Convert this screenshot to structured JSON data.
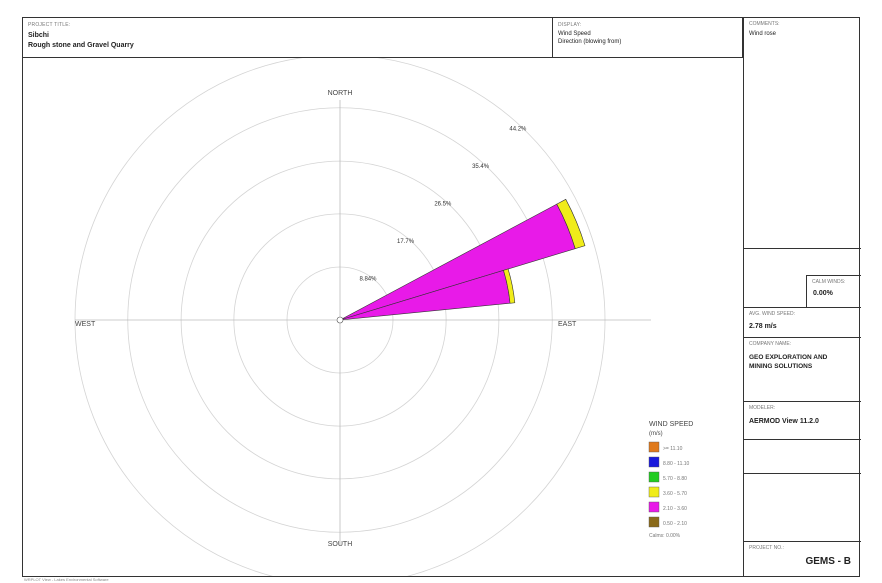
{
  "header": {
    "project_caption": "PROJECT TITLE:",
    "project_line1": "Sibchi",
    "project_line2": "Rough stone and Gravel Quarry",
    "display_caption": "DISPLAY:",
    "display_line1": "Wind Speed",
    "display_line2": "Direction (blowing from)"
  },
  "side": {
    "comments_caption": "COMMENTS:",
    "comments_value": "Wind rose",
    "calm_caption": "CALM WINDS:",
    "calm_value": "0.00%",
    "avg_caption": "AVG. WIND SPEED:",
    "avg_value": "2.78 m/s",
    "company_caption": "COMPANY NAME:",
    "company_value_line1": "GEO EXPLORATION AND",
    "company_value_line2": "MINING SOLUTIONS",
    "modeler_caption": "MODELER:",
    "modeler_value": "AERMOD View 11.2.0",
    "project_no_caption": "PROJECT NO.:",
    "project_no_value": "GEMS - B"
  },
  "footer": "WRPLOT View - Lakes Environmental Software",
  "chart_data": {
    "type": "windrose",
    "directions": [
      "NORTH",
      "EAST",
      "SOUTH",
      "WEST"
    ],
    "ring_labels": [
      "8.84%",
      "17.7%",
      "26.5%",
      "35.4%",
      "44.2%"
    ],
    "ring_values": [
      8.84,
      17.7,
      26.5,
      35.4,
      44.2
    ],
    "rmax": 44.2,
    "legend_title_line1": "WIND SPEED",
    "legend_title_line2": "(m/s)",
    "legend": [
      {
        "label": ">= 11.10",
        "color": "#e07a1c"
      },
      {
        "label": "8.80 - 11.10",
        "color": "#1a1adc"
      },
      {
        "label": "5.70 - 8.80",
        "color": "#22cc22"
      },
      {
        "label": "3.60 - 5.70",
        "color": "#f0ec1a"
      },
      {
        "label": "2.10 - 3.60",
        "color": "#e81ae8"
      },
      {
        "label": "0.50 - 2.10",
        "color": "#8a6a1a"
      }
    ],
    "legend_calms": "Calms: 0.00%",
    "petals": [
      {
        "direction_deg": 67.5,
        "segments": [
          {
            "color": "#e81ae8",
            "value": 41.0
          },
          {
            "color": "#f0ec1a",
            "value": 1.7
          }
        ]
      },
      {
        "direction_deg": 78.75,
        "segments": [
          {
            "color": "#e81ae8",
            "value": 28.5
          },
          {
            "color": "#f0ec1a",
            "value": 0.8
          }
        ]
      }
    ]
  }
}
